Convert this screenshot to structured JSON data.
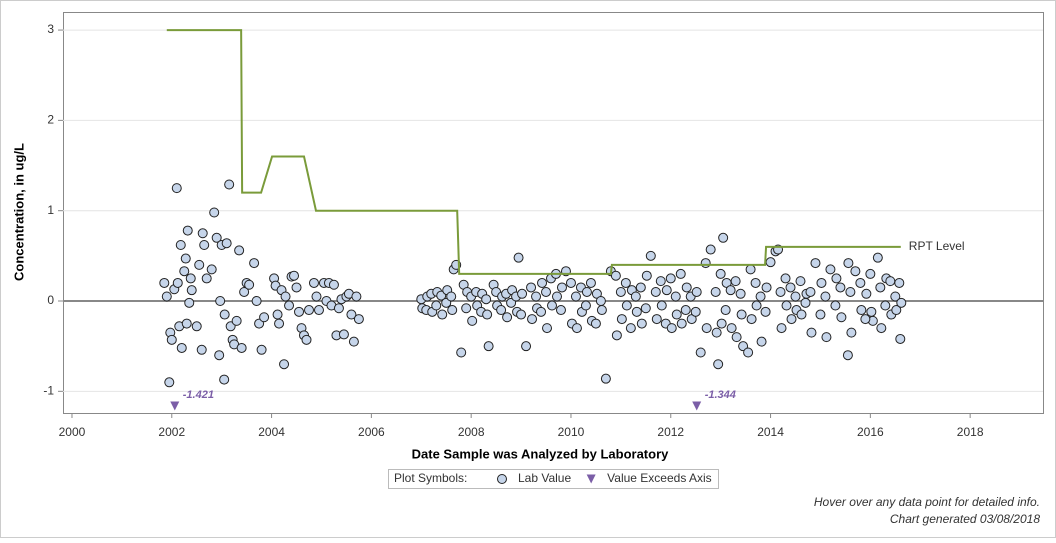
{
  "chart_data": {
    "type": "scatter",
    "xlabel": "Date Sample was Analyzed by Laboratory",
    "ylabel": "Concentration, in ug/L",
    "xlim": [
      1999.82,
      2019.46
    ],
    "ylim": [
      -1.24,
      3.2
    ],
    "xticks": [
      2000,
      2002,
      2004,
      2006,
      2008,
      2010,
      2012,
      2014,
      2016,
      2018
    ],
    "yticks": [
      -1,
      0,
      1,
      2,
      3
    ],
    "grid": true,
    "legend_title": "Plot Symbols:",
    "series": [
      {
        "name": "Lab Value",
        "marker": "circle",
        "color": "#c6d5ea",
        "x": [
          2001.85,
          2001.9,
          2001.95,
          2001.97,
          2002.0,
          2002.05,
          2002.1,
          2002.12,
          2002.15,
          2002.18,
          2002.2,
          2002.25,
          2002.28,
          2002.3,
          2002.32,
          2002.35,
          2002.38,
          2002.4,
          2002.5,
          2002.55,
          2002.6,
          2002.62,
          2002.65,
          2002.7,
          2002.8,
          2002.85,
          2002.9,
          2002.95,
          2002.97,
          2003.0,
          2003.05,
          2003.06,
          2003.1,
          2003.15,
          2003.18,
          2003.22,
          2003.25,
          2003.3,
          2003.35,
          2003.4,
          2003.45,
          2003.5,
          2003.55,
          2003.65,
          2003.7,
          2003.75,
          2003.8,
          2003.85,
          2004.05,
          2004.08,
          2004.12,
          2004.15,
          2004.2,
          2004.25,
          2004.28,
          2004.35,
          2004.4,
          2004.45,
          2004.5,
          2004.55,
          2004.6,
          2004.65,
          2004.7,
          2004.75,
          2004.85,
          2004.9,
          2004.95,
          2005.05,
          2005.1,
          2005.15,
          2005.2,
          2005.25,
          2005.3,
          2005.35,
          2005.4,
          2005.45,
          2005.5,
          2005.55,
          2005.6,
          2005.65,
          2005.7,
          2005.75,
          2007.65,
          2007.7,
          2007.8,
          2007.85,
          2008.35,
          2008.45,
          2008.95,
          2009.1,
          2009.9,
          2010.7,
          2010.8,
          2011.6,
          2012.6,
          2012.8,
          2012.95,
          2013.05,
          2013.45,
          2013.55,
          2014.0,
          2014.1,
          2014.15,
          2014.9,
          2015.2,
          2015.55,
          2015.56,
          2015.7,
          2016.05,
          2016.15,
          2016.6,
          2007.0,
          2007.02,
          2007.1,
          2007.12,
          2007.2,
          2007.22,
          2007.3,
          2007.32,
          2007.4,
          2007.42,
          2007.5,
          2007.52,
          2007.6,
          2007.62,
          2007.9,
          2007.92,
          2008.0,
          2008.02,
          2008.1,
          2008.12,
          2008.2,
          2008.22,
          2008.3,
          2008.32,
          2008.5,
          2008.52,
          2008.6,
          2008.62,
          2008.7,
          2008.72,
          2008.8,
          2008.82,
          2008.9,
          2008.92,
          2009.0,
          2009.02,
          2009.2,
          2009.22,
          2009.3,
          2009.32,
          2009.4,
          2009.42,
          2009.5,
          2009.52,
          2009.6,
          2009.62,
          2009.7,
          2009.72,
          2009.8,
          2009.82,
          2010.0,
          2010.02,
          2010.1,
          2010.12,
          2010.2,
          2010.22,
          2010.3,
          2010.32,
          2010.4,
          2010.42,
          2010.5,
          2010.52,
          2010.6,
          2010.62,
          2010.9,
          2010.92,
          2011.0,
          2011.02,
          2011.1,
          2011.12,
          2011.2,
          2011.22,
          2011.3,
          2011.32,
          2011.4,
          2011.42,
          2011.5,
          2011.52,
          2011.7,
          2011.72,
          2011.8,
          2011.82,
          2011.9,
          2011.92,
          2012.0,
          2012.02,
          2012.1,
          2012.12,
          2012.2,
          2012.22,
          2012.3,
          2012.32,
          2012.4,
          2012.42,
          2012.5,
          2012.52,
          2012.7,
          2012.72,
          2012.9,
          2012.92,
          2013.0,
          2013.02,
          2013.1,
          2013.12,
          2013.2,
          2013.22,
          2013.3,
          2013.32,
          2013.4,
          2013.42,
          2013.6,
          2013.62,
          2013.7,
          2013.72,
          2013.8,
          2013.82,
          2013.9,
          2013.92,
          2014.2,
          2014.22,
          2014.3,
          2014.32,
          2014.4,
          2014.42,
          2014.5,
          2014.52,
          2014.6,
          2014.62,
          2014.7,
          2014.72,
          2014.8,
          2014.82,
          2015.0,
          2015.02,
          2015.1,
          2015.12,
          2015.3,
          2015.32,
          2015.4,
          2015.42,
          2015.6,
          2015.62,
          2015.8,
          2015.82,
          2015.9,
          2015.92,
          2016.0,
          2016.02,
          2016.2,
          2016.22,
          2016.3,
          2016.32,
          2016.4,
          2016.42,
          2016.5,
          2016.52,
          2016.58,
          2016.62
        ],
        "values": [
          0.2,
          0.05,
          -0.9,
          -0.35,
          -0.43,
          0.13,
          1.25,
          0.2,
          -0.28,
          0.62,
          -0.52,
          0.33,
          0.47,
          -0.25,
          0.78,
          -0.02,
          0.25,
          0.12,
          -0.28,
          0.4,
          -0.54,
          0.75,
          0.62,
          0.25,
          0.35,
          0.98,
          0.7,
          -0.6,
          0.0,
          0.62,
          -0.87,
          -0.15,
          0.64,
          1.29,
          -0.28,
          -0.43,
          -0.48,
          -0.22,
          0.56,
          -0.52,
          0.1,
          0.2,
          0.18,
          0.42,
          0.0,
          -0.25,
          -0.54,
          -0.18,
          0.25,
          0.17,
          -0.15,
          -0.25,
          0.12,
          -0.7,
          0.05,
          -0.05,
          0.27,
          0.28,
          0.15,
          -0.12,
          -0.3,
          -0.38,
          -0.43,
          -0.1,
          0.2,
          0.05,
          -0.1,
          0.2,
          0.0,
          0.2,
          -0.05,
          0.18,
          -0.38,
          -0.08,
          0.02,
          -0.37,
          0.05,
          0.08,
          -0.15,
          -0.45,
          0.05,
          -0.2,
          0.35,
          0.4,
          -0.57,
          0.18,
          -0.5,
          0.18,
          0.48,
          -0.5,
          0.33,
          -0.86,
          0.33,
          0.5,
          -0.57,
          0.57,
          -0.7,
          0.7,
          -0.5,
          -0.57,
          0.43,
          0.55,
          0.57,
          0.42,
          0.35,
          -0.6,
          0.42,
          0.33,
          -0.22,
          0.48,
          -0.42,
          0.02,
          -0.08,
          -0.1,
          0.05,
          0.08,
          -0.12,
          -0.05,
          0.1,
          0.06,
          -0.15,
          -0.02,
          0.12,
          0.05,
          -0.1,
          -0.08,
          0.1,
          0.05,
          -0.22,
          0.1,
          -0.05,
          -0.12,
          0.08,
          0.02,
          -0.15,
          0.1,
          -0.05,
          -0.1,
          0.05,
          0.08,
          -0.18,
          -0.02,
          0.12,
          0.05,
          -0.12,
          -0.15,
          0.08,
          0.15,
          -0.2,
          0.05,
          -0.08,
          -0.12,
          0.2,
          0.1,
          -0.3,
          0.25,
          -0.05,
          0.3,
          0.05,
          -0.1,
          0.15,
          0.2,
          -0.25,
          0.05,
          -0.3,
          0.15,
          -0.12,
          -0.05,
          0.1,
          0.2,
          -0.22,
          -0.25,
          0.08,
          0.0,
          -0.1,
          0.28,
          -0.38,
          0.1,
          -0.2,
          0.2,
          -0.05,
          -0.3,
          0.12,
          0.05,
          -0.12,
          0.15,
          -0.25,
          -0.08,
          0.28,
          0.1,
          -0.2,
          0.22,
          -0.05,
          -0.25,
          0.12,
          0.25,
          -0.3,
          0.05,
          -0.15,
          0.3,
          -0.25,
          -0.1,
          0.15,
          0.05,
          -0.2,
          -0.12,
          0.1,
          0.42,
          -0.3,
          0.1,
          -0.35,
          0.3,
          -0.25,
          -0.1,
          0.2,
          0.12,
          -0.3,
          0.22,
          -0.4,
          0.08,
          -0.15,
          0.35,
          -0.2,
          0.2,
          -0.05,
          0.05,
          -0.45,
          -0.12,
          0.15,
          0.1,
          -0.3,
          0.25,
          -0.05,
          0.15,
          -0.2,
          0.05,
          -0.1,
          0.22,
          -0.15,
          -0.02,
          0.08,
          0.1,
          -0.35,
          -0.15,
          0.2,
          0.05,
          -0.4,
          -0.05,
          0.25,
          0.15,
          -0.18,
          0.1,
          -0.35,
          0.2,
          -0.1,
          -0.2,
          0.08,
          0.3,
          -0.12,
          0.15,
          -0.3,
          -0.05,
          0.25,
          0.22,
          -0.15,
          0.05,
          -0.1,
          0.2,
          -0.02
        ]
      },
      {
        "name": "Value Exceeds Axis",
        "marker": "triangle",
        "color": "#7b5ea7",
        "x": [
          2002.06,
          2012.52
        ],
        "values": [
          -1.421,
          -1.344
        ]
      },
      {
        "name": "RPT Level",
        "marker": "line",
        "color": "#7a9b3a",
        "x": [
          2001.9,
          2003.39,
          2003.41,
          2003.79,
          2004.01,
          2004.65,
          2004.89,
          2007.72,
          2007.76,
          2010.8,
          2010.82,
          2013.89,
          2013.91,
          2016.61
        ],
        "values": [
          3,
          3,
          1.2,
          1.2,
          1.6,
          1.6,
          1,
          1,
          0.3,
          0.3,
          0.4,
          0.4,
          0.6,
          0.6
        ]
      }
    ],
    "footnotes": [
      "Hover over any data point for detailed info.",
      "Chart generated 03/08/2018"
    ]
  }
}
